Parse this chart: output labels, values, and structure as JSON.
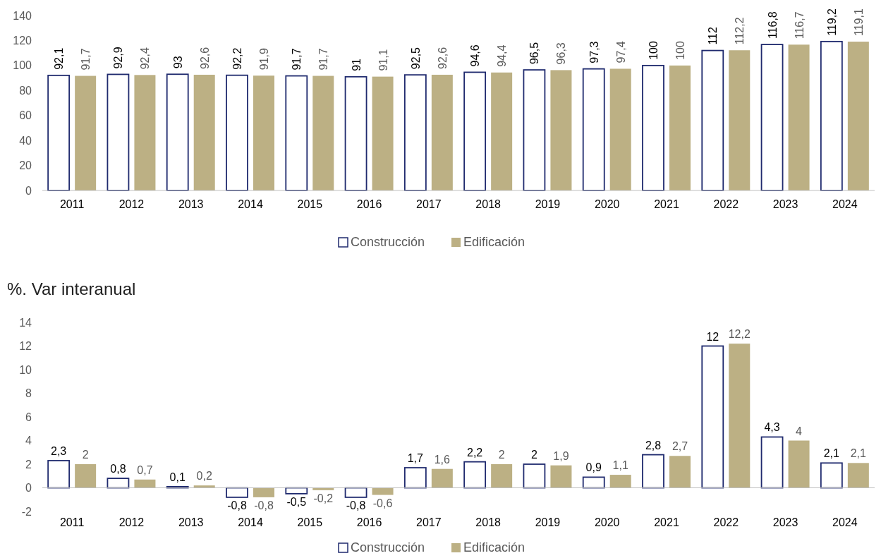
{
  "chart_data": [
    {
      "type": "bar",
      "categories": [
        "2011",
        "2012",
        "2013",
        "2014",
        "2015",
        "2016",
        "2017",
        "2018",
        "2019",
        "2020",
        "2021",
        "2022",
        "2023",
        "2024"
      ],
      "ylim": [
        0,
        140
      ],
      "yticks": [
        0,
        20,
        40,
        60,
        80,
        100,
        120,
        140
      ],
      "grid": false,
      "legend": "bottom",
      "series": [
        {
          "name": "Construcción",
          "color": "#1f2a6e",
          "values": [
            92.1,
            92.9,
            93,
            92.2,
            91.7,
            91,
            92.5,
            94.6,
            96.5,
            97.3,
            100,
            112,
            116.8,
            119.2
          ],
          "value_labels": [
            "92,1",
            "92,9",
            "93",
            "92,2",
            "91,7",
            "91",
            "92,5",
            "94,6",
            "96,5",
            "97,3",
            "100",
            "112",
            "116,8",
            "119,2"
          ]
        },
        {
          "name": "Edificación",
          "color": "#bcb084",
          "values": [
            91.7,
            92.4,
            92.6,
            91.9,
            91.7,
            91.1,
            92.6,
            94.4,
            96.3,
            97.4,
            100,
            112.2,
            116.7,
            119.1
          ],
          "value_labels": [
            "91,7",
            "92,4",
            "92,6",
            "91,9",
            "91,7",
            "91,1",
            "92,6",
            "94,4",
            "96,3",
            "97,4",
            "100",
            "112,2",
            "116,7",
            "119,1"
          ]
        }
      ]
    },
    {
      "type": "bar",
      "title": "%. Var interanual",
      "categories": [
        "2011",
        "2012",
        "2013",
        "2014",
        "2015",
        "2016",
        "2017",
        "2018",
        "2019",
        "2020",
        "2021",
        "2022",
        "2023",
        "2024"
      ],
      "ylim": [
        -2,
        14
      ],
      "yticks": [
        -2,
        0,
        2,
        4,
        6,
        8,
        10,
        12,
        14
      ],
      "grid": false,
      "legend": "bottom",
      "series": [
        {
          "name": "Construcción",
          "color": "#1f2a6e",
          "values": [
            2.3,
            0.8,
            0.1,
            -0.8,
            -0.5,
            -0.8,
            1.7,
            2.2,
            2,
            0.9,
            2.8,
            12,
            4.3,
            2.1
          ],
          "value_labels": [
            "2,3",
            "0,8",
            "0,1",
            "-0,8",
            "-0,5",
            "-0,8",
            "1,7",
            "2,2",
            "2",
            "0,9",
            "2,8",
            "12",
            "4,3",
            "2,1"
          ]
        },
        {
          "name": "Edificación",
          "color": "#bcb084",
          "values": [
            2,
            0.7,
            0.2,
            -0.8,
            -0.2,
            -0.6,
            1.6,
            2,
            1.9,
            1.1,
            2.7,
            12.2,
            4,
            2.1
          ],
          "value_labels": [
            "2",
            "0,7",
            "0,2",
            "-0,8",
            "-0,2",
            "-0,6",
            "1,6",
            "2",
            "1,9",
            "1,1",
            "2,7",
            "12,2",
            "4",
            "2,1"
          ]
        }
      ]
    }
  ]
}
